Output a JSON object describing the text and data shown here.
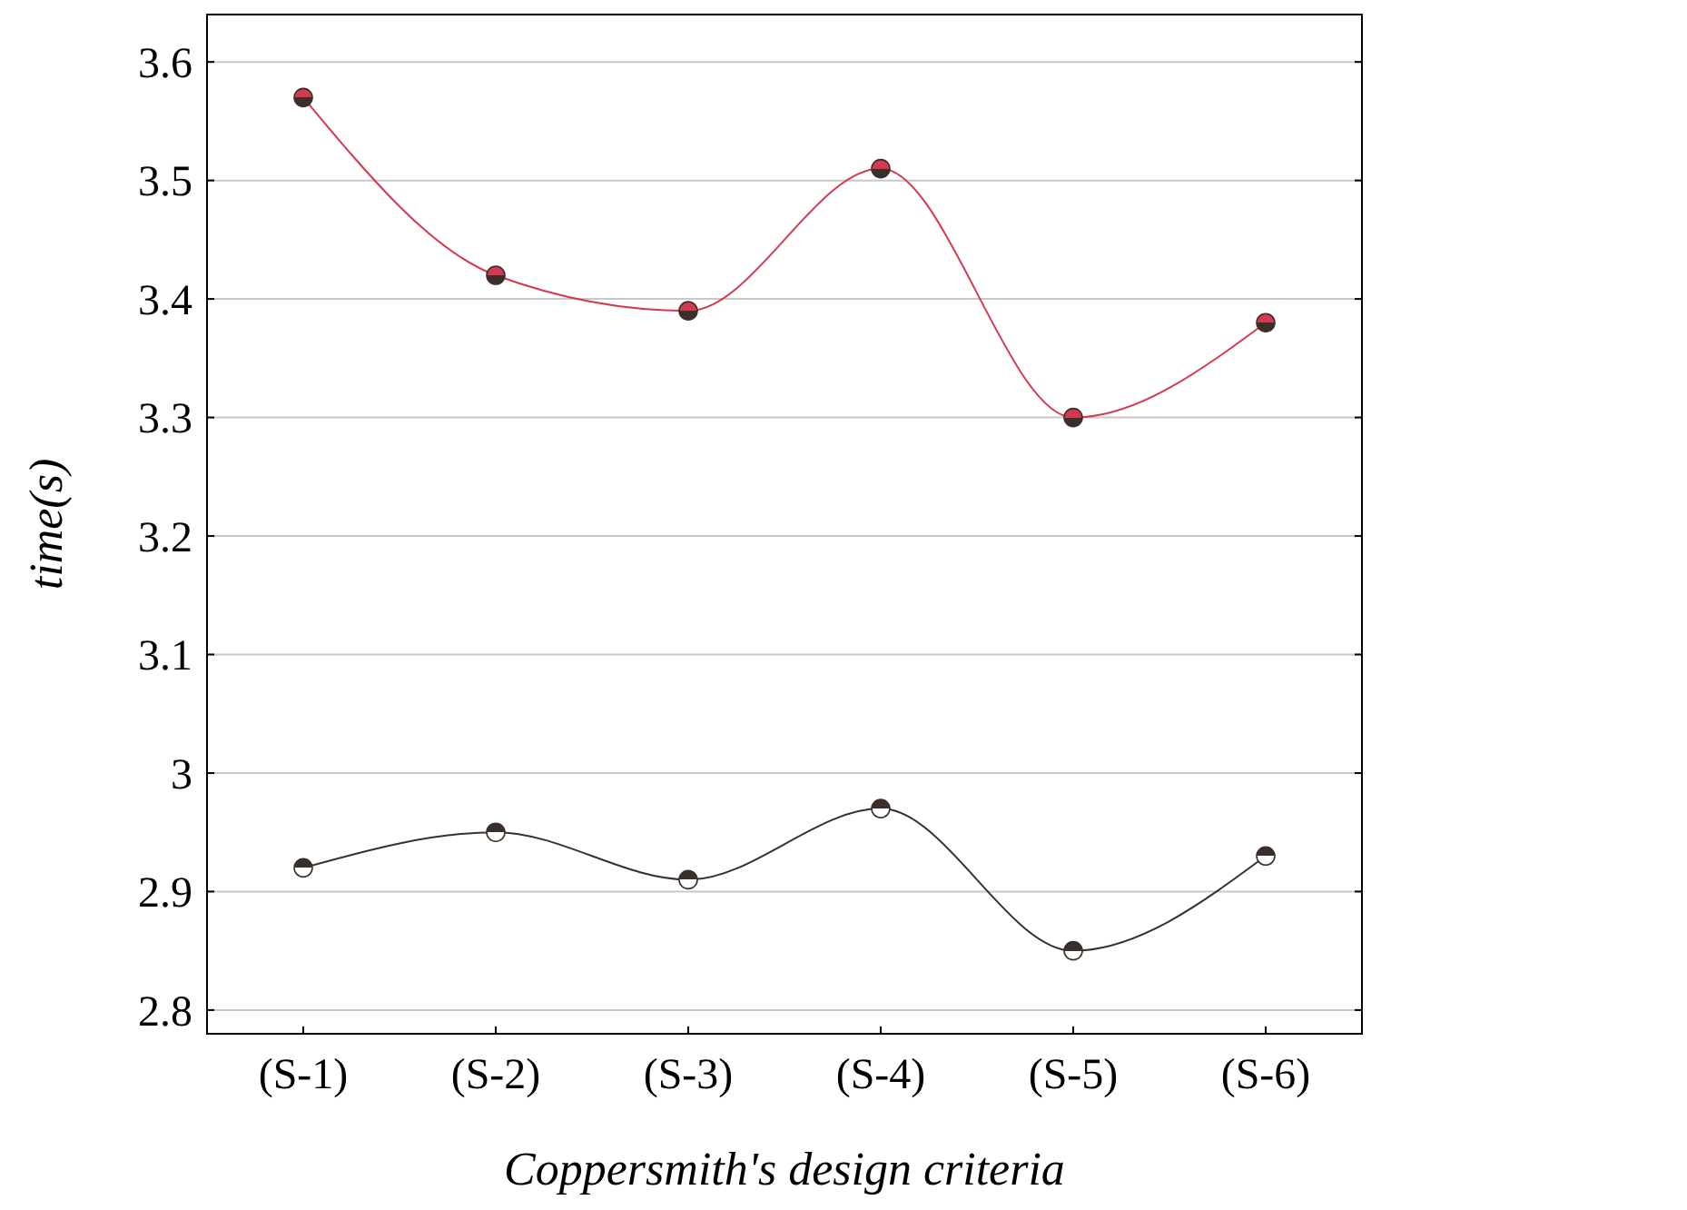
{
  "chart_data": {
    "type": "line",
    "xlabel": "Coppersmith's design criteria",
    "ylabel": "time(s)",
    "categories": [
      "(S-1)",
      "(S-2)",
      "(S-3)",
      "(S-4)",
      "(S-5)",
      "(S-6)"
    ],
    "series": [
      {
        "color": "#d43a4f",
        "values": [
          3.57,
          3.42,
          3.39,
          3.51,
          3.3,
          3.38
        ]
      },
      {
        "color": "#3a2f2a",
        "values": [
          2.92,
          2.95,
          2.91,
          2.97,
          2.85,
          2.93
        ]
      }
    ],
    "ylim": [
      2.78,
      3.64
    ],
    "yticks": [
      2.8,
      2.9,
      3,
      3.1,
      3.2,
      3.3,
      3.4,
      3.5,
      3.6
    ],
    "grid": "y",
    "marker": "circle",
    "line_style": "solid"
  }
}
